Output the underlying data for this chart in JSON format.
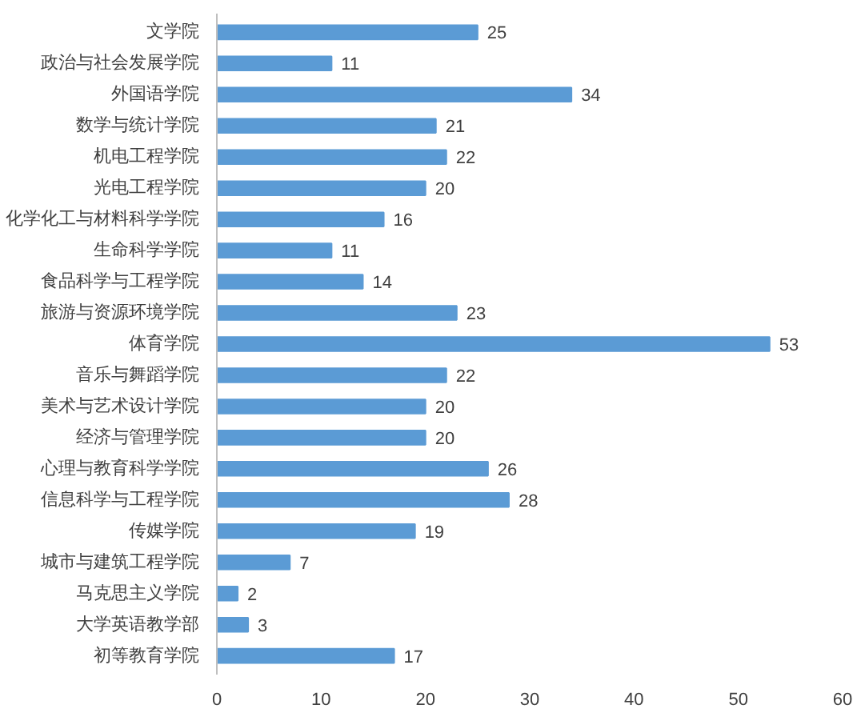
{
  "chart_data": {
    "type": "bar",
    "orientation": "horizontal",
    "categories": [
      "文学院",
      "政治与社会发展学院",
      "外国语学院",
      "数学与统计学院",
      "机电工程学院",
      "光电工程学院",
      "化学化工与材料科学学院",
      "生命科学学院",
      "食品科学与工程学院",
      "旅游与资源环境学院",
      "体育学院",
      "音乐与舞蹈学院",
      "美术与艺术设计学院",
      "经济与管理学院",
      "心理与教育科学学院",
      "信息科学与工程学院",
      "传媒学院",
      "城市与建筑工程学院",
      "马克思主义学院",
      "大学英语教学部",
      "初等教育学院"
    ],
    "values": [
      25,
      11,
      34,
      21,
      22,
      20,
      16,
      11,
      14,
      23,
      53,
      22,
      20,
      20,
      26,
      28,
      19,
      7,
      2,
      3,
      17
    ],
    "color": "#5b9bd5",
    "data_labels": true,
    "xlim": [
      0,
      60
    ],
    "xticks": [
      0,
      10,
      20,
      30,
      40,
      50,
      60
    ],
    "grid": false
  }
}
